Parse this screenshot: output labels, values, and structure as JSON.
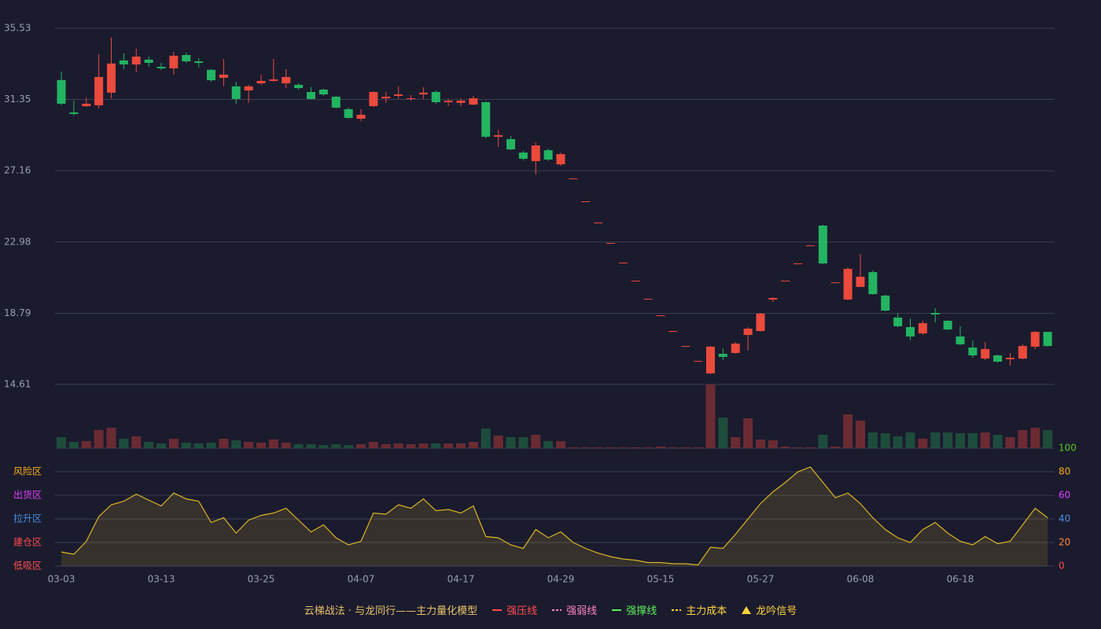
{
  "chart_data": {
    "type": "candlestick",
    "categories": [
      "03-03",
      null,
      null,
      null,
      null,
      null,
      null,
      null,
      "03-13",
      null,
      null,
      null,
      null,
      null,
      null,
      null,
      "03-25",
      null,
      null,
      null,
      null,
      null,
      null,
      null,
      "04-07",
      null,
      null,
      null,
      null,
      null,
      null,
      null,
      "04-17",
      null,
      null,
      null,
      null,
      null,
      null,
      null,
      "04-29",
      null,
      null,
      null,
      null,
      null,
      null,
      null,
      "05-15",
      null,
      null,
      null,
      null,
      null,
      null,
      null,
      "05-27",
      null,
      null,
      null,
      null,
      null,
      null,
      null,
      "06-08",
      null,
      null,
      null,
      null,
      null,
      null,
      null,
      "06-18",
      null,
      null,
      null,
      null,
      null,
      null,
      null
    ],
    "open": [
      32.49,
      30.59,
      30.96,
      31.01,
      31.75,
      33.64,
      33.41,
      33.69,
      33.27,
      33.18,
      33.96,
      33.59,
      33.09,
      32.62,
      32.12,
      31.88,
      32.3,
      32.44,
      32.3,
      32.21,
      31.79,
      31.93,
      31.51,
      30.78,
      30.22,
      30.96,
      31.42,
      31.56,
      31.38,
      31.65,
      31.79,
      31.19,
      31.15,
      31.05,
      31.19,
      29.16,
      29.02,
      28.23,
      27.73,
      28.37,
      27.54,
      26.71,
      25.37,
      24.12,
      22.92,
      21.77,
      20.71,
      19.64,
      18.67,
      17.75,
      16.87,
      15.99,
      15.26,
      16.41,
      16.46,
      17.52,
      17.75,
      19.6,
      20.71,
      21.72,
      22.78,
      23.94,
      20.61,
      19.6,
      20.34,
      21.21,
      19.83,
      18.54,
      17.98,
      17.61,
      18.81,
      18.35,
      17.43,
      16.78,
      16.13,
      16.32,
      16.09,
      16.13,
      16.83,
      17.7
    ],
    "high": [
      32.99,
      31.28,
      31.47,
      34.01,
      34.98,
      34.06,
      34.33,
      33.87,
      33.5,
      34.15,
      34.1,
      33.78,
      33.13,
      33.73,
      32.39,
      32.21,
      32.81,
      33.73,
      33.13,
      32.3,
      32.07,
      31.98,
      31.56,
      30.87,
      30.78,
      31.84,
      31.79,
      32.12,
      31.61,
      32.07,
      31.88,
      31.38,
      31.42,
      31.56,
      31.24,
      29.57,
      29.21,
      28.33,
      28.84,
      28.47,
      28.23,
      26.71,
      25.37,
      24.12,
      22.92,
      21.77,
      20.71,
      19.64,
      18.67,
      17.75,
      16.87,
      15.99,
      16.87,
      16.73,
      17.1,
      17.98,
      18.81,
      19.74,
      20.71,
      21.72,
      22.78,
      23.99,
      20.61,
      21.49,
      22.28,
      21.31,
      19.88,
      18.81,
      18.49,
      18.35,
      19.09,
      18.4,
      18.03,
      17.2,
      17.1,
      16.36,
      16.46,
      16.97,
      17.75,
      17.7
    ],
    "low": [
      31.01,
      30.41,
      30.91,
      30.82,
      31.42,
      33.13,
      32.95,
      33.27,
      33.09,
      32.81,
      33.5,
      33.22,
      32.39,
      32.12,
      31.1,
      31.15,
      32.21,
      32.39,
      32.02,
      31.93,
      31.38,
      31.56,
      30.82,
      30.22,
      30.08,
      30.91,
      31.15,
      31.38,
      31.28,
      31.38,
      31.1,
      30.96,
      30.96,
      31.01,
      29.07,
      28.56,
      28.37,
      27.77,
      26.94,
      27.73,
      27.45,
      26.71,
      25.37,
      24.12,
      22.92,
      21.77,
      20.71,
      19.64,
      18.67,
      17.75,
      16.87,
      15.99,
      15.21,
      16.04,
      16.41,
      16.6,
      17.7,
      19.46,
      20.71,
      21.72,
      22.78,
      21.68,
      20.61,
      19.55,
      20.34,
      19.88,
      18.91,
      17.98,
      17.2,
      17.52,
      18.26,
      17.8,
      16.92,
      16.18,
      16.04,
      15.9,
      15.72,
      16.09,
      16.69,
      16.83
    ],
    "close": [
      31.1,
      30.5,
      31.1,
      32.67,
      33.46,
      33.41,
      33.87,
      33.5,
      33.18,
      33.92,
      33.59,
      33.5,
      32.48,
      32.81,
      31.38,
      32.12,
      32.44,
      32.53,
      32.67,
      32.02,
      31.38,
      31.65,
      30.87,
      30.27,
      30.45,
      31.79,
      31.51,
      31.65,
      31.42,
      31.75,
      31.19,
      31.28,
      31.28,
      31.42,
      29.16,
      29.25,
      28.42,
      27.87,
      28.65,
      27.82,
      28.14,
      26.71,
      25.37,
      24.12,
      22.92,
      21.77,
      20.71,
      19.64,
      18.67,
      17.75,
      16.87,
      15.99,
      16.83,
      16.23,
      17.01,
      17.89,
      18.77,
      19.69,
      20.71,
      21.72,
      22.78,
      21.72,
      20.61,
      21.4,
      20.94,
      19.92,
      18.95,
      18.03,
      17.43,
      18.21,
      18.72,
      17.84,
      16.97,
      16.32,
      16.69,
      15.95,
      16.18,
      16.87,
      17.7,
      16.87
    ],
    "ylim": [
      14.61,
      35.53
    ],
    "yticks": [
      14.61,
      18.79,
      22.98,
      27.16,
      31.35,
      35.53
    ],
    "grid": true,
    "up_color": "#eb4a3c",
    "down_color": "#23b462",
    "volume": {
      "type": "bar",
      "values": [
        14,
        8,
        9,
        23,
        26,
        12,
        15,
        8,
        6,
        12,
        7,
        6,
        7,
        12,
        10,
        8,
        7,
        11,
        7,
        5,
        5,
        4,
        5,
        4,
        5,
        8,
        5,
        6,
        5,
        6,
        6,
        6,
        6,
        8,
        25,
        16,
        14,
        14,
        17,
        9,
        9,
        1,
        1,
        1,
        1,
        1,
        1,
        1,
        2,
        1,
        1,
        1,
        81,
        39,
        14,
        38,
        11,
        10,
        2,
        1,
        1,
        17,
        2,
        43,
        35,
        20,
        19,
        15,
        20,
        12,
        20,
        20,
        19,
        19,
        20,
        17,
        14,
        23,
        26,
        23
      ],
      "ylim": [
        0,
        81
      ],
      "up_color": "#6a2b33",
      "down_color": "#1e4c3c"
    },
    "oscillator": {
      "type": "area",
      "values": [
        12,
        10,
        21,
        42,
        52,
        55,
        61,
        56,
        51,
        62,
        57,
        55,
        37,
        41,
        28,
        39,
        43,
        45,
        49,
        39,
        29,
        35,
        24,
        18,
        21,
        45,
        44,
        52,
        49,
        57,
        47,
        48,
        45,
        51,
        25,
        24,
        18,
        15,
        31,
        24,
        29,
        20,
        15,
        11,
        8,
        6,
        5,
        3,
        3,
        2,
        2,
        1,
        16,
        15,
        27,
        40,
        53,
        63,
        71,
        80,
        84,
        71,
        58,
        62,
        53,
        41,
        31,
        24,
        20,
        31,
        37,
        28,
        21,
        18,
        25,
        19,
        21,
        35,
        49,
        41
      ],
      "ylim": [
        0,
        100
      ],
      "yticks": [
        0,
        20,
        40,
        60,
        80,
        100
      ],
      "ytick_colors": [
        "#ff4d4f",
        "#ff8a3d",
        "#4a90e2",
        "#e040fb",
        "#faad14",
        "#52c41a"
      ],
      "color": "#d9b526",
      "zones": [
        {
          "value": 80,
          "label": "风险区",
          "color": "#faad14"
        },
        {
          "value": 60,
          "label": "出货区",
          "color": "#e040fb"
        },
        {
          "value": 40,
          "label": "拉升区",
          "color": "#4a90e2"
        },
        {
          "value": 20,
          "label": "建仓区",
          "color": "#ff4d4f"
        },
        {
          "value": 0,
          "label": "低吸区",
          "color": "#ff4d4f"
        }
      ]
    },
    "legend": {
      "title": "云梯战法 · 与龙同行——主力量化模型",
      "title_color": "#e8c36a",
      "items": [
        {
          "name": "强压线",
          "color": "#ff4d4f",
          "style": "line"
        },
        {
          "name": "强弱线",
          "color": "#ff85c0",
          "style": "dashed"
        },
        {
          "name": "强撑线",
          "color": "#5cf05c",
          "style": "line"
        },
        {
          "name": "主力成本",
          "color": "#ffd33d",
          "style": "dashed"
        },
        {
          "name": "龙吟信号",
          "color": "#ffd33d",
          "style": "triangle"
        }
      ]
    }
  }
}
